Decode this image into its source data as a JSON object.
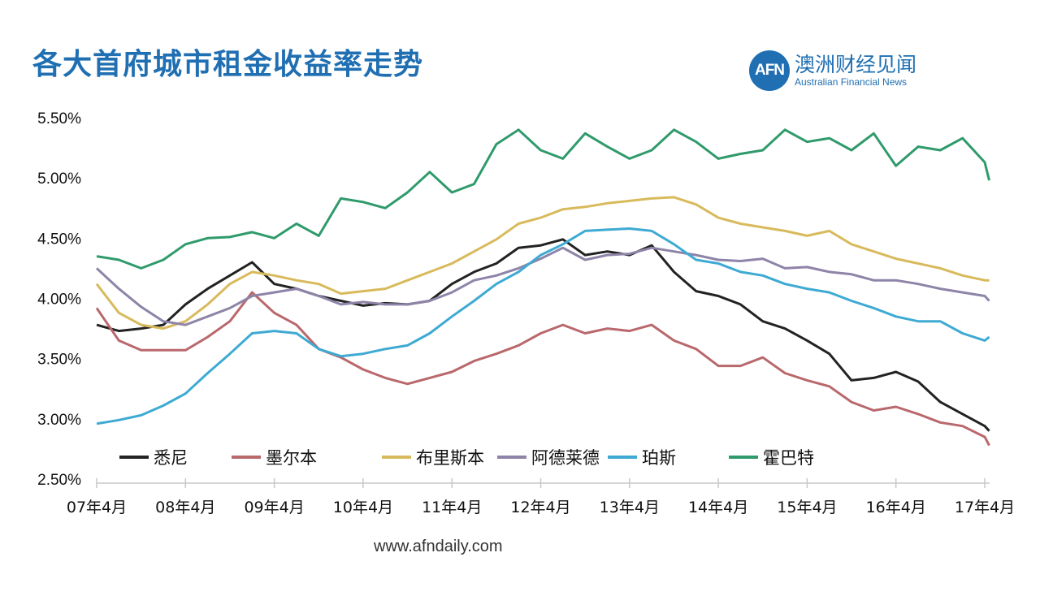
{
  "header": {
    "title": "各大首府城市租金收益率走势"
  },
  "logo": {
    "mark": "AFN",
    "name_cn": "澳洲财经见闻",
    "name_en": "Australian Financial News"
  },
  "footer": {
    "url": "www.afndaily.com"
  },
  "chart_data": {
    "type": "line",
    "title": "各大首府城市租金收益率走势",
    "xlabel": "",
    "ylabel": "",
    "ylim": [
      2.5,
      5.5
    ],
    "xlim": [
      2007.25,
      2017.3
    ],
    "y_ticks": [
      "5.50%",
      "5.00%",
      "4.50%",
      "4.00%",
      "3.50%",
      "3.00%",
      "2.50%"
    ],
    "y_tick_values": [
      5.5,
      5.0,
      4.5,
      4.0,
      3.5,
      3.0,
      2.5
    ],
    "x_ticks": [
      "07年4月",
      "08年4月",
      "09年4月",
      "10年4月",
      "11年4月",
      "12年4月",
      "13年4月",
      "14年4月",
      "15年4月",
      "16年4月",
      "17年4月"
    ],
    "x_tick_values": [
      2007.25,
      2008.25,
      2009.25,
      2010.25,
      2011.25,
      2012.25,
      2013.25,
      2014.25,
      2015.25,
      2016.25,
      2017.25
    ],
    "legend_position": "bottom-inside",
    "x_start": 2007.25,
    "x_step": 0.25,
    "series": [
      {
        "name": "悉尼",
        "color": "#222222",
        "values": [
          3.78,
          3.73,
          3.75,
          3.78,
          3.95,
          4.08,
          4.19,
          4.3,
          4.12,
          4.08,
          4.02,
          3.98,
          3.94,
          3.96,
          3.95,
          3.98,
          4.12,
          4.22,
          4.29,
          4.42,
          4.44,
          4.49,
          4.36,
          4.39,
          4.36,
          4.44,
          4.22,
          4.06,
          4.02,
          3.95,
          3.81,
          3.75,
          3.65,
          3.54,
          3.32,
          3.34,
          3.39,
          3.31,
          3.14,
          3.04,
          2.94,
          2.9
        ]
      },
      {
        "name": "墨尔本",
        "color": "#b9686c",
        "values": [
          3.92,
          3.65,
          3.57,
          3.57,
          3.57,
          3.68,
          3.81,
          4.05,
          3.88,
          3.78,
          3.58,
          3.51,
          3.41,
          3.34,
          3.29,
          3.34,
          3.39,
          3.48,
          3.54,
          3.61,
          3.71,
          3.78,
          3.71,
          3.75,
          3.73,
          3.78,
          3.65,
          3.58,
          3.44,
          3.44,
          3.51,
          3.38,
          3.32,
          3.27,
          3.14,
          3.07,
          3.1,
          3.04,
          2.97,
          2.94,
          2.85,
          2.78
        ]
      },
      {
        "name": "布里斯本",
        "color": "#d8ba5c",
        "values": [
          4.12,
          3.88,
          3.78,
          3.75,
          3.81,
          3.95,
          4.12,
          4.22,
          4.19,
          4.15,
          4.12,
          4.04,
          4.06,
          4.08,
          4.15,
          4.22,
          4.29,
          4.39,
          4.49,
          4.62,
          4.67,
          4.74,
          4.76,
          4.79,
          4.81,
          4.83,
          4.84,
          4.78,
          4.67,
          4.62,
          4.59,
          4.56,
          4.52,
          4.56,
          4.45,
          4.39,
          4.33,
          4.29,
          4.25,
          4.19,
          4.15,
          4.15
        ]
      },
      {
        "name": "阿德莱德",
        "color": "#8e84a8",
        "values": [
          4.25,
          4.08,
          3.93,
          3.81,
          3.78,
          3.85,
          3.92,
          4.02,
          4.05,
          4.08,
          4.02,
          3.95,
          3.97,
          3.95,
          3.95,
          3.98,
          4.05,
          4.15,
          4.19,
          4.25,
          4.33,
          4.42,
          4.32,
          4.36,
          4.37,
          4.42,
          4.39,
          4.36,
          4.32,
          4.31,
          4.33,
          4.25,
          4.26,
          4.22,
          4.2,
          4.15,
          4.15,
          4.12,
          4.08,
          4.05,
          4.02,
          3.98
        ]
      },
      {
        "name": "珀斯",
        "color": "#3eaad3",
        "values": [
          2.96,
          2.99,
          3.03,
          3.11,
          3.21,
          3.38,
          3.54,
          3.71,
          3.73,
          3.71,
          3.58,
          3.52,
          3.54,
          3.58,
          3.61,
          3.71,
          3.85,
          3.98,
          4.12,
          4.22,
          4.36,
          4.45,
          4.56,
          4.57,
          4.58,
          4.56,
          4.45,
          4.32,
          4.29,
          4.22,
          4.19,
          4.12,
          4.08,
          4.05,
          3.98,
          3.92,
          3.85,
          3.81,
          3.81,
          3.71,
          3.65,
          3.68
        ]
      },
      {
        "name": "霍巴特",
        "color": "#2f9a6b",
        "values": [
          4.35,
          4.32,
          4.25,
          4.32,
          4.45,
          4.5,
          4.51,
          4.55,
          4.5,
          4.62,
          4.52,
          4.83,
          4.8,
          4.75,
          4.88,
          5.05,
          4.88,
          4.95,
          5.28,
          5.4,
          5.23,
          5.16,
          5.37,
          5.26,
          5.16,
          5.23,
          5.4,
          5.3,
          5.16,
          5.2,
          5.23,
          5.4,
          5.3,
          5.33,
          5.23,
          5.37,
          5.1,
          5.26,
          5.23,
          5.33,
          5.13,
          4.98
        ]
      }
    ]
  }
}
